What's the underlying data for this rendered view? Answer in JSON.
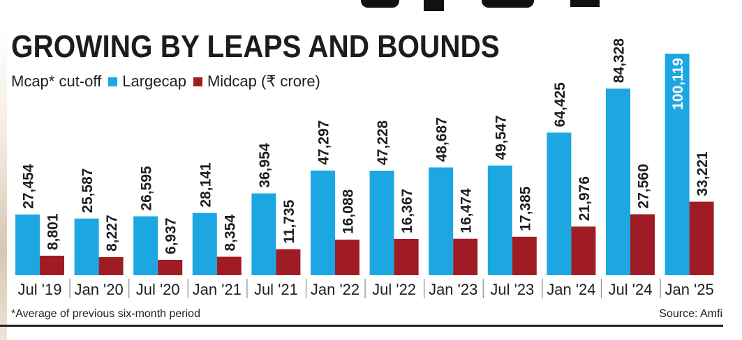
{
  "chart_data": {
    "type": "bar",
    "title": "GROWING BY LEAPS AND BOUNDS",
    "legend": {
      "prefix": "Mcap* cut-off",
      "series_labels": [
        "Largecap",
        "Midcap (₹ crore)"
      ]
    },
    "categories": [
      "Jul '19",
      "Jan '20",
      "Jul '20",
      "Jan '21",
      "Jul '21",
      "Jan '22",
      "Jul '22",
      "Jan '23",
      "Jul '23",
      "Jan '24",
      "Jul '24",
      "Jan '25"
    ],
    "series": [
      {
        "name": "Largecap",
        "color": "#1ca7e3",
        "values": [
          27454,
          25587,
          26595,
          28141,
          36954,
          47297,
          47228,
          48687,
          49547,
          64425,
          84328,
          100119
        ],
        "labels": [
          "27,454",
          "25,587",
          "26,595",
          "28,141",
          "36,954",
          "47,297",
          "47,228",
          "48,687",
          "49,547",
          "64,425",
          "84,328",
          "100,119"
        ]
      },
      {
        "name": "Midcap",
        "color": "#a01c24",
        "values": [
          8801,
          8227,
          6937,
          8354,
          11735,
          16088,
          16367,
          16474,
          17385,
          21976,
          27560,
          33221
        ],
        "labels": [
          "8,801",
          "8,227",
          "6,937",
          "8,354",
          "11,735",
          "16,088",
          "16,367",
          "16,474",
          "17,385",
          "21,976",
          "27,560",
          "33,221"
        ]
      }
    ],
    "ylim": [
      0,
      100119
    ],
    "xlabel": "",
    "ylabel": "",
    "grid": false,
    "footnote": "*Average of previous six-month period",
    "source": "Source: Amfi"
  }
}
